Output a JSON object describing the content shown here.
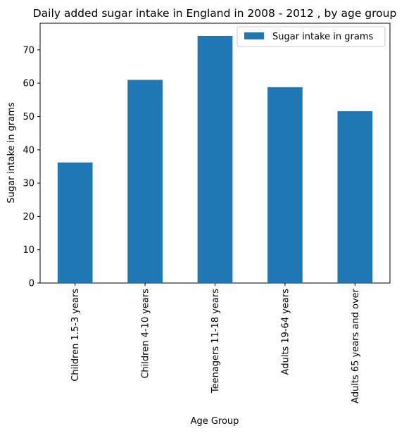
{
  "chart_data": {
    "type": "bar",
    "title": "Daily added sugar intake in England in 2008 - 2012 , by age group",
    "xlabel": "Age Group",
    "ylabel": "Sugar intake in grams",
    "categories": [
      "Children 1.5-3 years",
      "Children 4-10 years",
      "Teenagers 11-18 years",
      "Adults 19-64 years",
      "Adults 65 years and over"
    ],
    "series": [
      {
        "name": "Sugar intake in grams",
        "values": [
          36.2,
          61.0,
          74.2,
          58.8,
          51.6
        ],
        "color": "#1f77b4"
      }
    ],
    "ylim": [
      0,
      78
    ],
    "yticks": [
      0,
      10,
      20,
      30,
      40,
      50,
      60,
      70
    ],
    "grid": false,
    "legend_position": "top-right"
  }
}
